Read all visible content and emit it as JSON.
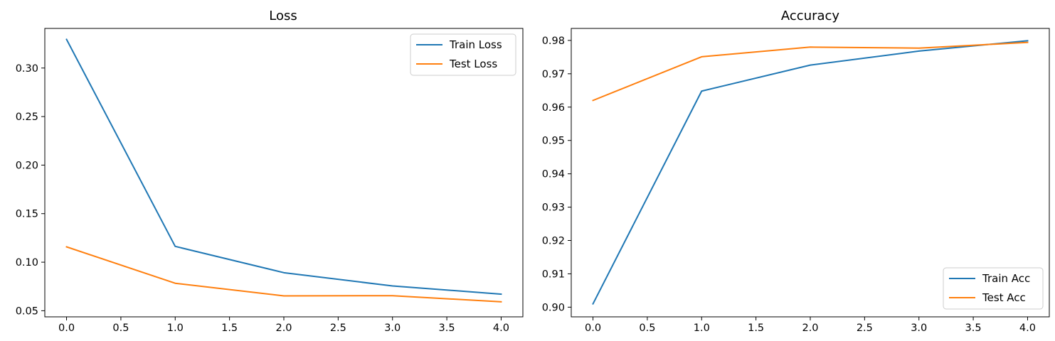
{
  "chart_data": [
    {
      "type": "line",
      "title": "Loss",
      "xlabel": "",
      "ylabel": "",
      "xlim": [
        -0.2,
        4.2
      ],
      "ylim": [
        0.0437,
        0.3408
      ],
      "xticks": [
        0,
        0.5,
        1,
        1.5,
        2,
        2.5,
        3,
        3.5,
        4
      ],
      "xtick_labels": [
        "0.0",
        "0.5",
        "1.0",
        "1.5",
        "2.0",
        "2.5",
        "3.0",
        "3.5",
        "4.0"
      ],
      "yticks": [
        0.05,
        0.1,
        0.15,
        0.2,
        0.25,
        0.3
      ],
      "ytick_labels": [
        "0.05",
        "0.10",
        "0.15",
        "0.20",
        "0.25",
        "0.30"
      ],
      "grid": false,
      "legend": "upper-right",
      "x": [
        0,
        1,
        2,
        3,
        4
      ],
      "series": [
        {
          "name": "Train Loss",
          "color": "#1f77b4",
          "values": [
            0.3295,
            0.1163,
            0.0892,
            0.0755,
            0.0671
          ]
        },
        {
          "name": "Test Loss",
          "color": "#ff7f0e",
          "values": [
            0.1158,
            0.0783,
            0.0653,
            0.0655,
            0.0592
          ]
        }
      ]
    },
    {
      "type": "line",
      "title": "Accuracy",
      "xlabel": "",
      "ylabel": "",
      "xlim": [
        -0.2,
        4.2
      ],
      "ylim": [
        0.8971,
        0.9836
      ],
      "xticks": [
        0,
        0.5,
        1,
        1.5,
        2,
        2.5,
        3,
        3.5,
        4
      ],
      "xtick_labels": [
        "0.0",
        "0.5",
        "1.0",
        "1.5",
        "2.0",
        "2.5",
        "3.0",
        "3.5",
        "4.0"
      ],
      "yticks": [
        0.9,
        0.91,
        0.92,
        0.93,
        0.94,
        0.95,
        0.96,
        0.97,
        0.98
      ],
      "ytick_labels": [
        "0.90",
        "0.91",
        "0.92",
        "0.93",
        "0.94",
        "0.95",
        "0.96",
        "0.97",
        "0.98"
      ],
      "grid": false,
      "legend": "lower-right",
      "x": [
        0,
        1,
        2,
        3,
        4
      ],
      "series": [
        {
          "name": "Train Acc",
          "color": "#1f77b4",
          "values": [
            0.901,
            0.9648,
            0.9726,
            0.9768,
            0.9799
          ]
        },
        {
          "name": "Test Acc",
          "color": "#ff7f0e",
          "values": [
            0.962,
            0.9751,
            0.978,
            0.9777,
            0.9794
          ]
        }
      ]
    }
  ]
}
